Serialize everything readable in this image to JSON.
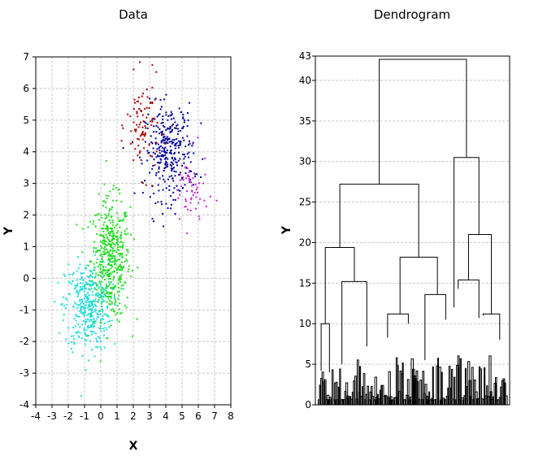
{
  "chart_data": [
    {
      "type": "scatter",
      "title": "Data",
      "xlabel": "X",
      "ylabel": "Y",
      "xlim": [
        -4,
        8
      ],
      "ylim": [
        -4,
        7
      ],
      "xticks": [
        -4,
        -3,
        -2,
        -1,
        0,
        1,
        2,
        3,
        4,
        5,
        6,
        7,
        8
      ],
      "yticks": [
        -4,
        -3,
        -2,
        -1,
        0,
        1,
        2,
        3,
        4,
        5,
        6,
        7
      ],
      "grid": true,
      "series": [
        {
          "color": "#22dd22",
          "center": [
            0.6,
            0.6
          ],
          "spread": [
            0.6,
            0.95
          ],
          "count": 500
        },
        {
          "color": "#22dddd",
          "center": [
            -0.8,
            -0.9
          ],
          "spread": [
            0.7,
            0.7
          ],
          "count": 380
        },
        {
          "color": "#000099",
          "center": [
            4.2,
            4.0
          ],
          "spread": [
            0.75,
            0.75
          ],
          "count": 320
        },
        {
          "color": "#aa0000",
          "center": [
            2.6,
            4.8
          ],
          "spread": [
            0.5,
            0.75
          ],
          "count": 90
        },
        {
          "color": "#cc22cc",
          "center": [
            5.5,
            2.7
          ],
          "spread": [
            0.55,
            0.6
          ],
          "count": 60
        }
      ]
    },
    {
      "type": "dendrogram",
      "title": "Dendrogram",
      "ylabel": "Y",
      "ylim": [
        0,
        43
      ],
      "yticks": [
        0,
        5,
        10,
        15,
        20,
        25,
        30,
        35,
        40,
        43
      ],
      "grid": true,
      "merges": [
        {
          "left": [
            0.1,
            4.2
          ],
          "right": [
            0.3,
            4.0
          ],
          "height": 10.0
        },
        {
          "left": [
            0.6,
            5.0
          ],
          "right": [
            1.2,
            7.2
          ],
          "height": 15.2
        },
        {
          "left": [
            0.2,
            10.0
          ],
          "right": [
            0.9,
            15.2
          ],
          "height": 19.4
        },
        {
          "left": [
            1.7,
            8.3
          ],
          "right": [
            2.2,
            10.0
          ],
          "height": 11.2
        },
        {
          "left": [
            2.6,
            5.5
          ],
          "right": [
            3.1,
            10.5
          ],
          "height": 13.6
        },
        {
          "left": [
            2.0,
            11.2
          ],
          "right": [
            2.9,
            13.6
          ],
          "height": 18.2
        },
        {
          "left": [
            0.55,
            19.4
          ],
          "right": [
            2.45,
            18.2
          ],
          "height": 27.2
        },
        {
          "left": [
            3.4,
            14.3
          ],
          "right": [
            3.9,
            10.7
          ],
          "height": 15.4
        },
        {
          "left": [
            4.0,
            11.0
          ],
          "right": [
            4.4,
            8.0
          ],
          "height": 11.2
        },
        {
          "left": [
            3.65,
            15.4
          ],
          "right": [
            4.2,
            11.2
          ],
          "height": 21.0
        },
        {
          "left": [
            3.3,
            12.0
          ],
          "right": [
            3.9,
            21.0
          ],
          "height": 30.5
        },
        {
          "left": [
            1.5,
            27.2
          ],
          "right": [
            3.6,
            30.5
          ],
          "height": 42.6
        }
      ]
    }
  ]
}
